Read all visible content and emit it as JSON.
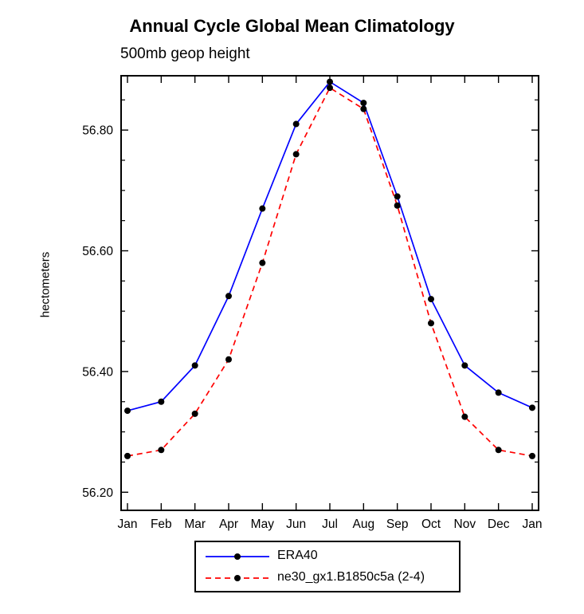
{
  "chart_data": {
    "type": "line",
    "title": "Annual Cycle Global Mean Climatology",
    "subtitle": "500mb geop height",
    "ylabel": "hectometers",
    "categories": [
      "Jan",
      "Feb",
      "Mar",
      "Apr",
      "May",
      "Jun",
      "Jul",
      "Aug",
      "Sep",
      "Oct",
      "Nov",
      "Dec",
      "Jan"
    ],
    "ylim": [
      56.17,
      56.89
    ],
    "yticks_major": [
      56.2,
      56.4,
      56.6,
      56.8
    ],
    "ytick_labels": [
      "56.20",
      "56.40",
      "56.60",
      "56.80"
    ],
    "yminor_step": 0.05,
    "grid": false,
    "legend_position": "bottom-center",
    "marker": {
      "shape": "filled-circle",
      "color": "#000000",
      "radius": 4
    },
    "series": [
      {
        "name": "ERA40",
        "color": "#0000ff",
        "dash": "solid",
        "values": [
          56.335,
          56.35,
          56.41,
          56.525,
          56.67,
          56.81,
          56.88,
          56.845,
          56.69,
          56.52,
          56.41,
          56.365,
          56.34
        ]
      },
      {
        "name": "ne30_gx1.B1850c5a (2-4)",
        "color": "#ff0000",
        "dash": "dashed",
        "values": [
          56.26,
          56.27,
          56.33,
          56.42,
          56.58,
          56.76,
          56.87,
          56.835,
          56.675,
          56.48,
          56.325,
          56.27,
          56.26
        ]
      }
    ]
  }
}
